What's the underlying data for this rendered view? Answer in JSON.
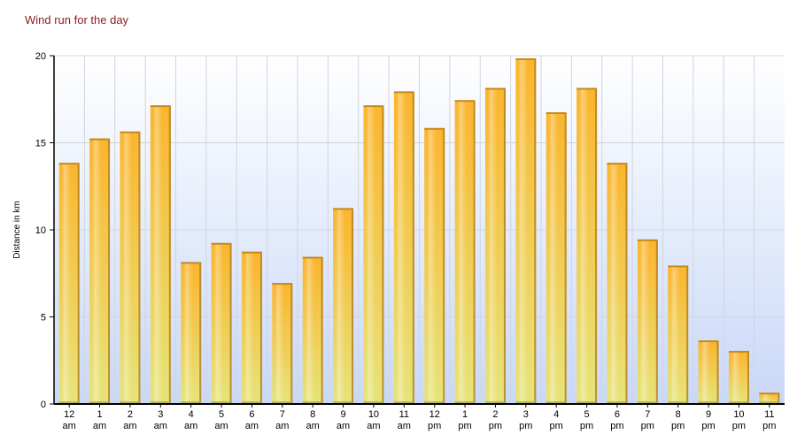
{
  "chart_data": {
    "type": "bar",
    "title": "Wind run for the day",
    "ylabel": "Distance in km",
    "xlabel": "",
    "ylim": [
      0,
      20
    ],
    "yticks": [
      0,
      5,
      10,
      15,
      20
    ],
    "grid": true,
    "legend": "none",
    "categories": [
      [
        "12",
        "am"
      ],
      [
        "1",
        "am"
      ],
      [
        "2",
        "am"
      ],
      [
        "3",
        "am"
      ],
      [
        "4",
        "am"
      ],
      [
        "5",
        "am"
      ],
      [
        "6",
        "am"
      ],
      [
        "7",
        "am"
      ],
      [
        "8",
        "am"
      ],
      [
        "9",
        "am"
      ],
      [
        "10",
        "am"
      ],
      [
        "11",
        "am"
      ],
      [
        "12",
        "pm"
      ],
      [
        "1",
        "pm"
      ],
      [
        "2",
        "pm"
      ],
      [
        "3",
        "pm"
      ],
      [
        "4",
        "pm"
      ],
      [
        "5",
        "pm"
      ],
      [
        "6",
        "pm"
      ],
      [
        "7",
        "pm"
      ],
      [
        "8",
        "pm"
      ],
      [
        "9",
        "pm"
      ],
      [
        "10",
        "pm"
      ],
      [
        "11",
        "pm"
      ]
    ],
    "values": [
      13.8,
      15.2,
      15.6,
      17.1,
      8.1,
      9.2,
      8.7,
      6.9,
      8.4,
      11.2,
      17.1,
      17.9,
      15.8,
      17.4,
      18.1,
      19.8,
      16.7,
      18.1,
      13.8,
      9.4,
      7.9,
      3.6,
      3.0,
      0.6
    ],
    "colors": {
      "bar_top": "#fbb52e",
      "bar_bottom": "#e6e47a",
      "bar_side": "#b07d1e",
      "bar_cap": "#c48a1c",
      "plot_bg_top": "#ffffff",
      "plot_bg_bottom": "#c9d8f8",
      "grid": "#d0d5dc",
      "title": "#8b1a1a"
    }
  }
}
